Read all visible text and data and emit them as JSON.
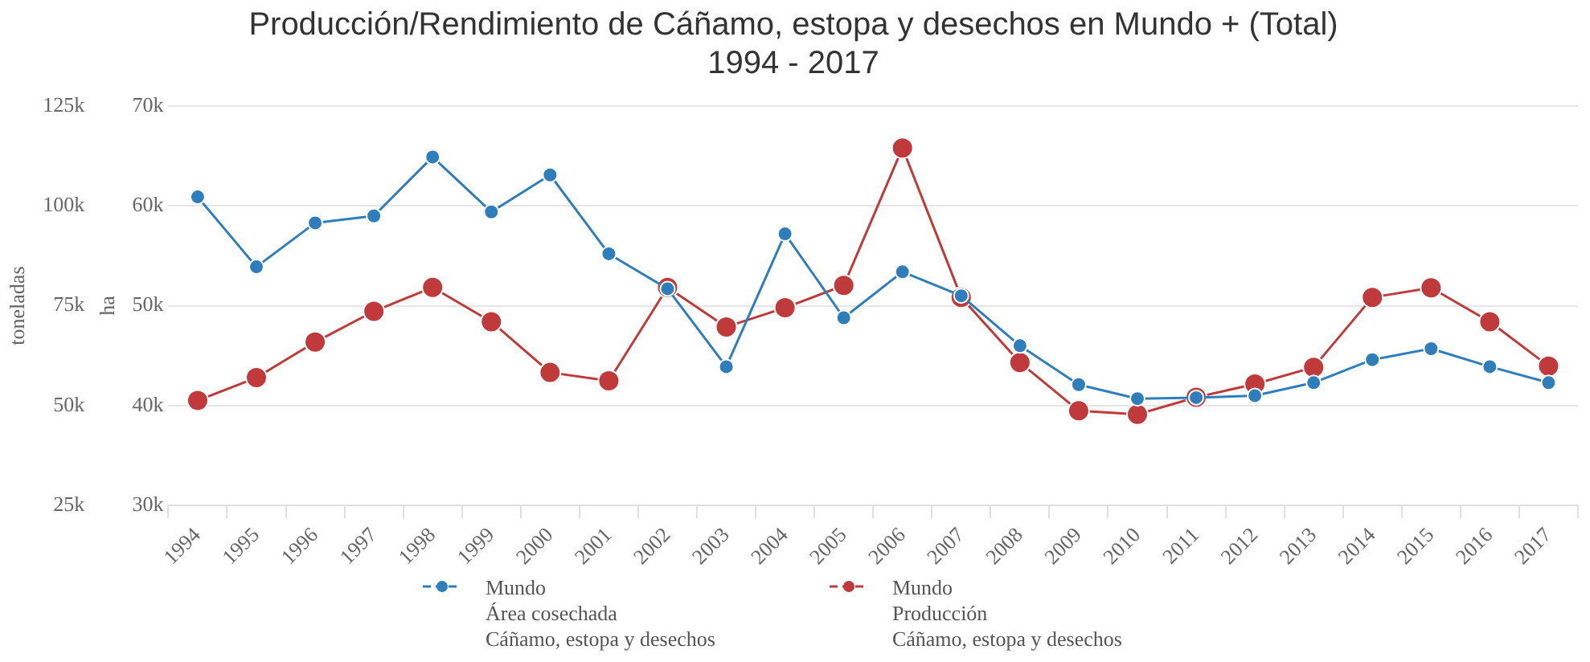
{
  "chart_data": {
    "type": "line",
    "title": "Producción/Rendimiento de Cáñamo, estopa y desechos en Mundo + (Total)",
    "subtitle": "1994 - 2017",
    "ylabel": "ha",
    "y2label": "toneladas",
    "categories": [
      "1994",
      "1995",
      "1996",
      "1997",
      "1998",
      "1999",
      "2000",
      "2001",
      "2002",
      "2003",
      "2004",
      "2005",
      "2006",
      "2007",
      "2008",
      "2009",
      "2010",
      "2011",
      "2012",
      "2013",
      "2014",
      "2015",
      "2016",
      "2017"
    ],
    "series": [
      {
        "name": "Mundo\nÁrea cosechada\nCáñamo, estopa y desechos",
        "color": "#2f7ebc",
        "values": [
          60900,
          53900,
          58300,
          59000,
          64900,
          59400,
          63100,
          55200,
          51700,
          43900,
          57200,
          48800,
          53400,
          51000,
          46000,
          42100,
          40700,
          40800,
          41000,
          42300,
          44600,
          45700,
          43900,
          42300
        ]
      },
      {
        "name": "Mundo\nProducción\nCáñamo, estopa y desechos",
        "color": "#c0393b",
        "axis": "y2",
        "values": [
          51300,
          57000,
          65900,
          73600,
          79600,
          71000,
          58300,
          56200,
          79600,
          69700,
          74500,
          80100,
          114500,
          77100,
          60800,
          48700,
          47800,
          52100,
          55400,
          59600,
          77100,
          79500,
          71000,
          59900
        ]
      }
    ],
    "ylim": [
      30000,
      70000
    ],
    "yticks": [
      {
        "value": 30000,
        "label": "30k"
      },
      {
        "value": 40000,
        "label": "40k"
      },
      {
        "value": 50000,
        "label": "50k"
      },
      {
        "value": 60000,
        "label": "60k"
      },
      {
        "value": 70000,
        "label": "70k"
      }
    ],
    "y2lim": [
      25000,
      125000
    ],
    "y2ticks": [
      {
        "value": 25000,
        "label": "25k"
      },
      {
        "value": 50000,
        "label": "50k"
      },
      {
        "value": 75000,
        "label": "75k"
      },
      {
        "value": 100000,
        "label": "100k"
      },
      {
        "value": 125000,
        "label": "125k"
      }
    ],
    "grid": "y",
    "legend": "bottom",
    "marker": "circle",
    "line_style": "solid"
  }
}
